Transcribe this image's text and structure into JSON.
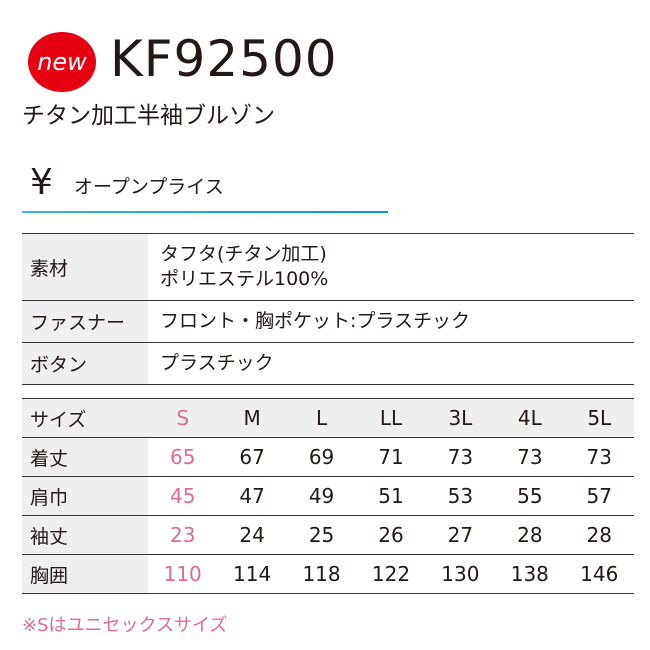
{
  "header": {
    "badge": "new",
    "model": "KF92500",
    "name": "チタン加工半袖ブルゾン"
  },
  "price": {
    "symbol": "¥",
    "text": "オープンプライス"
  },
  "specs": [
    {
      "label": "素材",
      "lines": [
        "タフタ(チタン加工)",
        "ポリエステル100%"
      ]
    },
    {
      "label": "ファスナー",
      "lines": [
        "フロント・胸ポケット:プラスチック"
      ]
    },
    {
      "label": "ボタン",
      "lines": [
        "プラスチック"
      ]
    }
  ],
  "sizes": {
    "label": "サイズ",
    "columns": [
      "S",
      "M",
      "L",
      "LL",
      "3L",
      "4L",
      "5L"
    ],
    "rows": [
      {
        "label": "着丈",
        "values": [
          65,
          67,
          69,
          71,
          73,
          73,
          73
        ]
      },
      {
        "label": "肩巾",
        "values": [
          45,
          47,
          49,
          51,
          53,
          55,
          57
        ]
      },
      {
        "label": "袖丈",
        "values": [
          23,
          24,
          25,
          26,
          27,
          28,
          28
        ]
      },
      {
        "label": "胸囲",
        "values": [
          110,
          114,
          118,
          122,
          130,
          138,
          146
        ]
      }
    ]
  },
  "note": "※Sはユニセックスサイズ"
}
